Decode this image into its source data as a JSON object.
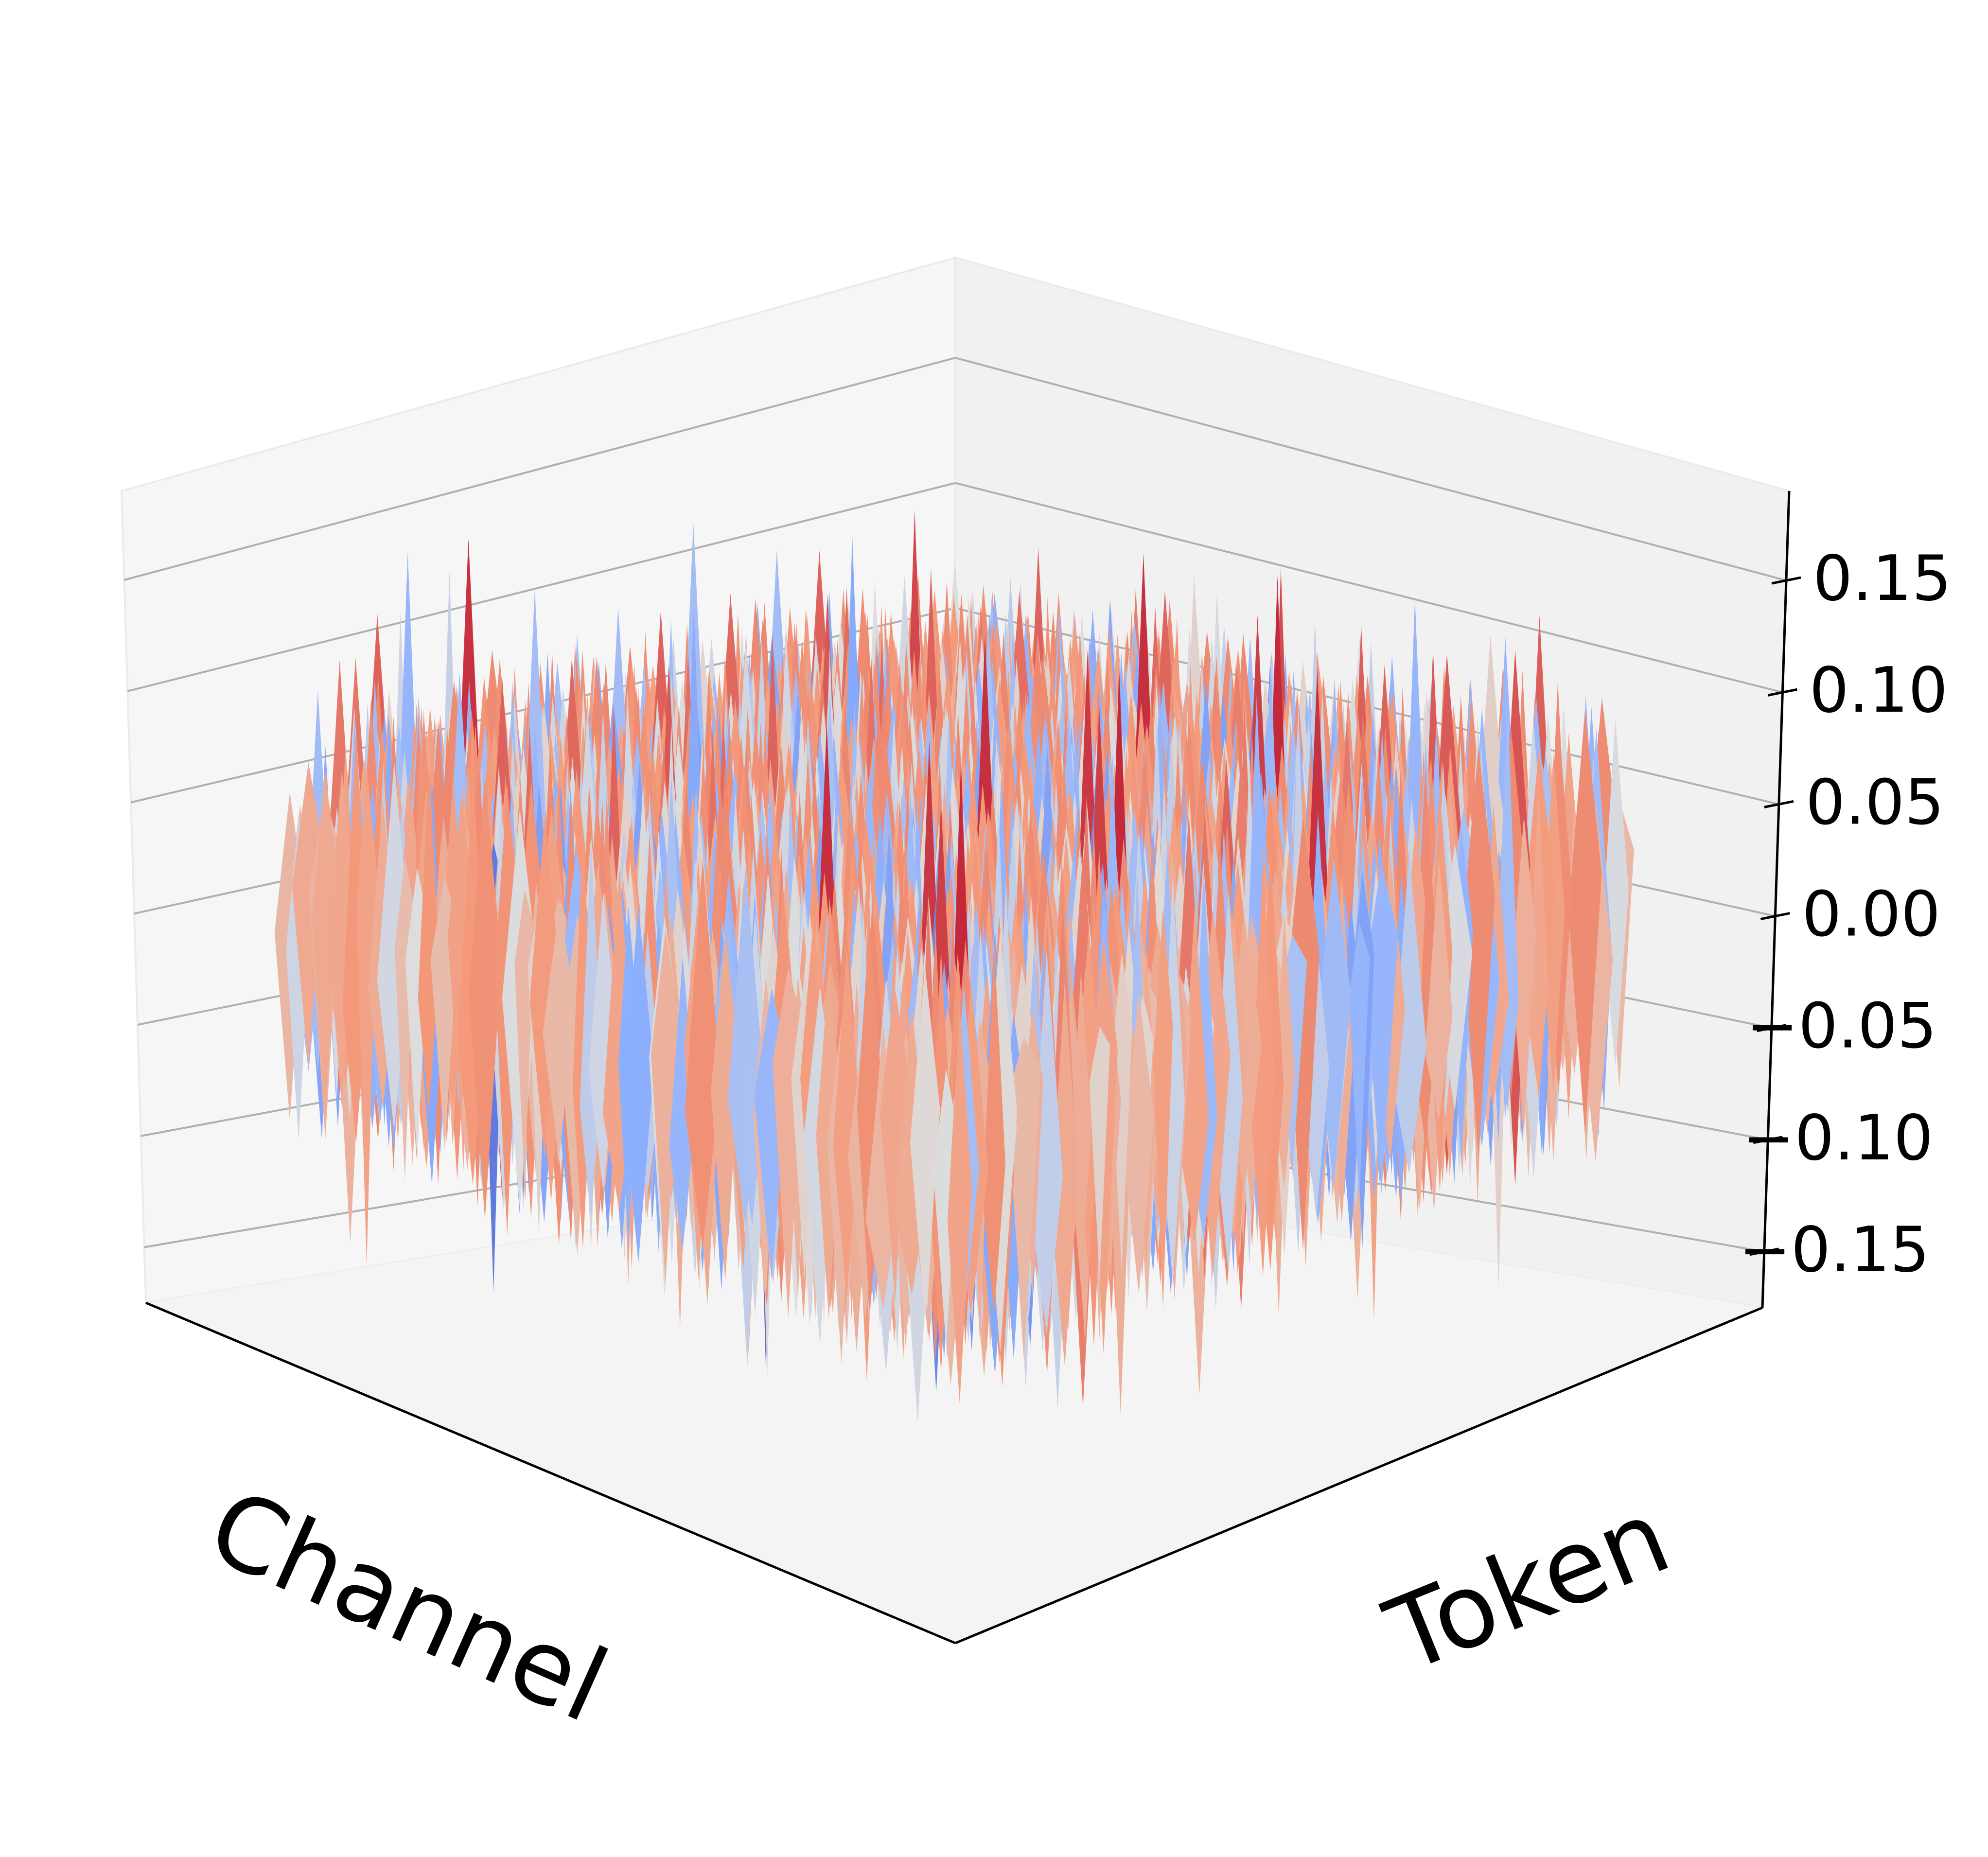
{
  "chart_data": {
    "type": "surface3d",
    "title": "",
    "xlabel": "Channel",
    "ylabel": "Token",
    "zlabel": "",
    "colormap": "coolwarm",
    "colormap_stops": [
      "#3b4cc0",
      "#8db0fe",
      "#dddddd",
      "#f49a7b",
      "#b40426"
    ],
    "zlim": [
      -0.175,
      0.19
    ],
    "zticks": [
      -0.15,
      -0.1,
      -0.05,
      0.0,
      0.05,
      0.1,
      0.15
    ],
    "ztick_labels": [
      "−0.15",
      "−0.10",
      "−0.05",
      "0.00",
      "0.05",
      "0.10",
      "0.15"
    ],
    "grid": true,
    "value_description": "dense random surface; most values between -0.05 and 0.10, peaks near 0.17, troughs near -0.15"
  }
}
